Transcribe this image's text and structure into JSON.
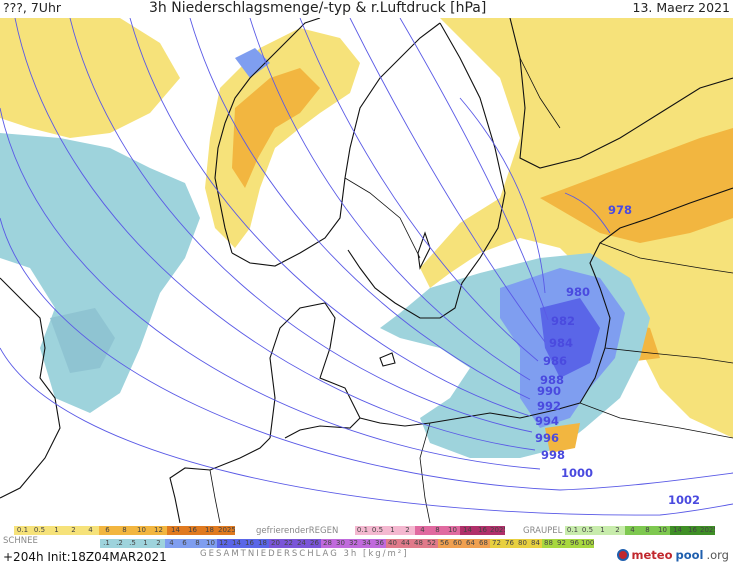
{
  "header": {
    "left": "???, 7Uhr",
    "title": "3h Niederschlagsmenge/-typ & r.Luftdruck [hPa]",
    "date": "13. Maerz 2021"
  },
  "isobars": [
    {
      "label": "978"
    },
    {
      "label": "980"
    },
    {
      "label": "982"
    },
    {
      "label": "984"
    },
    {
      "label": "986"
    },
    {
      "label": "988"
    },
    {
      "label": "990"
    },
    {
      "label": "992"
    },
    {
      "label": "994"
    },
    {
      "label": "996"
    },
    {
      "label": "998"
    },
    {
      "label": "1000"
    },
    {
      "label": "1002"
    }
  ],
  "legend": {
    "rain_label": "",
    "freezing_rain_label": "gefrierenderREGEN",
    "graupel_label": "GRAUPEL",
    "snow_label": "SCHNEE",
    "total_label": "GESAMTNIEDERSCHLAG 3h [kg/m²]",
    "rain_scale": [
      "0.1",
      "0.5",
      "1",
      "2",
      "4",
      "6",
      "8",
      "10",
      "12",
      "14",
      "16",
      "18",
      "2025+"
    ],
    "freezing_scale": [
      "0.1",
      "0.5",
      "1",
      "2",
      "4",
      "8",
      "10",
      "14",
      "16",
      "2025+"
    ],
    "graupel_scale": [
      "0.1",
      "0.5",
      "1",
      "2",
      "4",
      "8",
      "10",
      "14",
      "16",
      "2025+"
    ],
    "snow_scale": [
      ".1",
      ".2",
      ".5",
      "1",
      "2",
      "4",
      "6",
      "8",
      "10",
      "12",
      "14",
      "16",
      "18",
      "20",
      "22",
      "24",
      "26",
      "28",
      "30",
      "32",
      "34",
      "36",
      "40",
      "44",
      "48",
      "52",
      "56",
      "60",
      "64",
      "68",
      "72",
      "76",
      "80",
      "84",
      "88",
      "92",
      "96",
      "100"
    ],
    "colors": {
      "rain_light": "#f6e27a",
      "rain_mid": "#f2b640",
      "rain_heavy": "#e07a20",
      "snow_light": "#9ed3dc",
      "snow_mid": "#7f9ef0",
      "snow_heavy": "#5a66e8",
      "freezing": "#e06aa0",
      "graupel": "#7ec850"
    }
  },
  "footer": {
    "left": "+204h  Init:18Z04MAR2021",
    "brand_main": "meteo",
    "brand_accent": "pool",
    "brand_suffix": ".org"
  }
}
